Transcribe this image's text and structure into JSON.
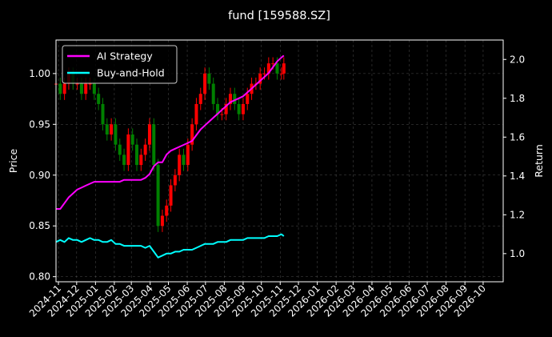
{
  "chart_data": {
    "type": "line",
    "title": "fund [159588.SZ]",
    "ylabel_left": "Price",
    "ylabel_right": "Return",
    "ylim_left": [
      0.795,
      1.033
    ],
    "ylim_right": [
      0.855,
      2.1
    ],
    "y_ticks_left": [
      "0.80",
      "0.85",
      "0.90",
      "0.95",
      "1.00"
    ],
    "y_tick_values_left": [
      0.8,
      0.85,
      0.9,
      0.95,
      1.0
    ],
    "y_ticks_right": [
      "1.0",
      "1.2",
      "1.4",
      "1.6",
      "1.8",
      "2.0"
    ],
    "y_tick_values_right": [
      1.0,
      1.2,
      1.4,
      1.6,
      1.8,
      2.0
    ],
    "x_range": [
      "2024-10-28",
      "2026-11-03"
    ],
    "x_ticks": [
      "2024-11",
      "2024-12",
      "2025-01",
      "2025-02",
      "2025-03",
      "2025-04",
      "2025-05",
      "2025-06",
      "2025-07",
      "2025-08",
      "2025-09",
      "2025-10",
      "2025-11",
      "2025-12",
      "2026-01",
      "2026-02",
      "2026-03",
      "2026-04",
      "2026-05",
      "2026-06",
      "2026-07",
      "2026-08",
      "2026-09",
      "2026-10"
    ],
    "grid": true,
    "legend_position": "top-left",
    "colors": {
      "ai_strategy": "#ff00ff",
      "buy_and_hold": "#00ffff",
      "candle_up": "#ff0000",
      "candle_down": "#008000",
      "grid": "#808080",
      "background": "#000000"
    },
    "series": [
      {
        "name": "AI Strategy",
        "axis": "right",
        "x": [
          "2024-10-28",
          "2024-11-04",
          "2024-11-11",
          "2024-11-18",
          "2024-11-25",
          "2024-12-02",
          "2024-12-09",
          "2024-12-16",
          "2024-12-23",
          "2024-12-30",
          "2025-01-06",
          "2025-01-13",
          "2025-01-20",
          "2025-01-27",
          "2025-02-03",
          "2025-02-10",
          "2025-02-17",
          "2025-02-24",
          "2025-03-03",
          "2025-03-10",
          "2025-03-17",
          "2025-03-24",
          "2025-03-31",
          "2025-04-07",
          "2025-04-14",
          "2025-04-21",
          "2025-04-28",
          "2025-05-05",
          "2025-05-12",
          "2025-05-19",
          "2025-05-26",
          "2025-06-02",
          "2025-06-09",
          "2025-06-16",
          "2025-06-23",
          "2025-06-30",
          "2025-07-07",
          "2025-07-14",
          "2025-07-21",
          "2025-07-28",
          "2025-08-04",
          "2025-08-11",
          "2025-08-18",
          "2025-08-25",
          "2025-09-01",
          "2025-09-08",
          "2025-09-15",
          "2025-09-22",
          "2025-09-29",
          "2025-10-06",
          "2025-10-13",
          "2025-10-20",
          "2025-10-27",
          "2025-11-03",
          "2025-11-07"
        ],
        "values": [
          1.23,
          1.23,
          1.26,
          1.29,
          1.31,
          1.33,
          1.34,
          1.35,
          1.36,
          1.37,
          1.37,
          1.37,
          1.37,
          1.37,
          1.37,
          1.37,
          1.38,
          1.38,
          1.38,
          1.38,
          1.38,
          1.39,
          1.41,
          1.45,
          1.47,
          1.47,
          1.51,
          1.53,
          1.54,
          1.55,
          1.56,
          1.57,
          1.58,
          1.61,
          1.64,
          1.66,
          1.68,
          1.7,
          1.72,
          1.74,
          1.76,
          1.78,
          1.79,
          1.8,
          1.81,
          1.83,
          1.85,
          1.87,
          1.89,
          1.91,
          1.93,
          1.96,
          1.99,
          2.01,
          2.02
        ]
      },
      {
        "name": "Buy-and-Hold",
        "axis": "right",
        "x": [
          "2024-10-28",
          "2024-11-04",
          "2024-11-11",
          "2024-11-18",
          "2024-11-25",
          "2024-12-02",
          "2024-12-09",
          "2024-12-16",
          "2024-12-23",
          "2024-12-30",
          "2025-01-06",
          "2025-01-13",
          "2025-01-20",
          "2025-01-27",
          "2025-02-03",
          "2025-02-10",
          "2025-02-17",
          "2025-02-24",
          "2025-03-03",
          "2025-03-10",
          "2025-03-17",
          "2025-03-24",
          "2025-03-31",
          "2025-04-07",
          "2025-04-14",
          "2025-04-21",
          "2025-04-28",
          "2025-05-05",
          "2025-05-12",
          "2025-05-19",
          "2025-05-26",
          "2025-06-02",
          "2025-06-09",
          "2025-06-16",
          "2025-06-23",
          "2025-06-30",
          "2025-07-07",
          "2025-07-14",
          "2025-07-21",
          "2025-07-28",
          "2025-08-04",
          "2025-08-11",
          "2025-08-18",
          "2025-08-25",
          "2025-09-01",
          "2025-09-08",
          "2025-09-15",
          "2025-09-22",
          "2025-09-29",
          "2025-10-06",
          "2025-10-13",
          "2025-10-20",
          "2025-10-27",
          "2025-11-03",
          "2025-11-07"
        ],
        "values": [
          1.06,
          1.07,
          1.06,
          1.08,
          1.07,
          1.07,
          1.06,
          1.07,
          1.08,
          1.07,
          1.07,
          1.06,
          1.06,
          1.07,
          1.05,
          1.05,
          1.04,
          1.04,
          1.04,
          1.04,
          1.04,
          1.03,
          1.04,
          1.01,
          0.98,
          0.99,
          1.0,
          1.0,
          1.01,
          1.01,
          1.02,
          1.02,
          1.02,
          1.03,
          1.04,
          1.05,
          1.05,
          1.05,
          1.06,
          1.06,
          1.06,
          1.07,
          1.07,
          1.07,
          1.07,
          1.08,
          1.08,
          1.08,
          1.08,
          1.08,
          1.09,
          1.09,
          1.09,
          1.1,
          1.09
        ]
      },
      {
        "name": "Price",
        "axis": "left",
        "x": [
          "2024-10-28",
          "2024-11-04",
          "2024-11-11",
          "2024-11-18",
          "2024-11-25",
          "2024-12-02",
          "2024-12-09",
          "2024-12-16",
          "2024-12-23",
          "2024-12-30",
          "2025-01-06",
          "2025-01-13",
          "2025-01-20",
          "2025-01-27",
          "2025-02-03",
          "2025-02-10",
          "2025-02-17",
          "2025-02-24",
          "2025-03-03",
          "2025-03-10",
          "2025-03-17",
          "2025-03-24",
          "2025-03-31",
          "2025-04-07",
          "2025-04-14",
          "2025-04-21",
          "2025-04-28",
          "2025-05-05",
          "2025-05-12",
          "2025-05-19",
          "2025-05-26",
          "2025-06-02",
          "2025-06-09",
          "2025-06-16",
          "2025-06-23",
          "2025-06-30",
          "2025-07-07",
          "2025-07-14",
          "2025-07-21",
          "2025-07-28",
          "2025-08-04",
          "2025-08-11",
          "2025-08-18",
          "2025-08-25",
          "2025-09-01",
          "2025-09-08",
          "2025-09-15",
          "2025-09-22",
          "2025-09-29",
          "2025-10-06",
          "2025-10-13",
          "2025-10-20",
          "2025-10-27",
          "2025-11-03",
          "2025-11-07"
        ],
        "values": [
          0.99,
          0.98,
          0.99,
          1.0,
          0.99,
          0.99,
          0.98,
          0.99,
          0.99,
          0.98,
          0.97,
          0.95,
          0.94,
          0.95,
          0.93,
          0.92,
          0.91,
          0.94,
          0.93,
          0.91,
          0.92,
          0.93,
          0.95,
          0.91,
          0.85,
          0.86,
          0.87,
          0.89,
          0.9,
          0.92,
          0.91,
          0.93,
          0.95,
          0.97,
          0.98,
          1.0,
          0.99,
          0.97,
          0.96,
          0.96,
          0.97,
          0.98,
          0.97,
          0.96,
          0.97,
          0.98,
          0.99,
          0.99,
          1.0,
          1.0,
          1.01,
          1.01,
          1.0,
          1.0,
          1.01
        ]
      }
    ]
  }
}
